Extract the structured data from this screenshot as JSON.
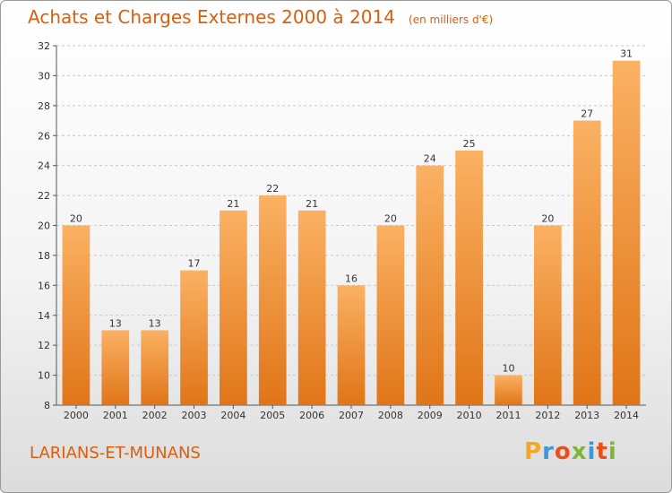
{
  "header": {
    "title": "Achats et Charges Externes 2000 à 2014",
    "subtitle": "(en milliers d'€)"
  },
  "footer": {
    "commune": "LARIANS-ET-MUNANS"
  },
  "logo": {
    "letters": [
      "P",
      "r",
      "o",
      "x",
      "i",
      "t",
      "i"
    ],
    "colors": [
      "#f5a623",
      "#3a9ad9",
      "#e8501a",
      "#7bb83a",
      "#3a9ad9",
      "#e8501a",
      "#7bb83a"
    ]
  },
  "colors": {
    "bar_light": "#fbb163",
    "bar_dark": "#e07518",
    "grid": "#c8c8c8",
    "axis": "#555555"
  },
  "chart_data": {
    "type": "bar",
    "title": "Achats et Charges Externes 2000 à 2014",
    "subtitle": "(en milliers d'€)",
    "categories": [
      "2000",
      "2001",
      "2002",
      "2003",
      "2004",
      "2005",
      "2006",
      "2007",
      "2008",
      "2009",
      "2010",
      "2011",
      "2012",
      "2013",
      "2014"
    ],
    "values": [
      20,
      13,
      13,
      17,
      21,
      22,
      21,
      16,
      20,
      24,
      25,
      10,
      20,
      27,
      31
    ],
    "ylim": [
      8,
      32
    ],
    "yticks": [
      8,
      10,
      12,
      14,
      16,
      18,
      20,
      22,
      24,
      26,
      28,
      30,
      32
    ],
    "grid": true,
    "xlabel": "",
    "ylabel": ""
  }
}
